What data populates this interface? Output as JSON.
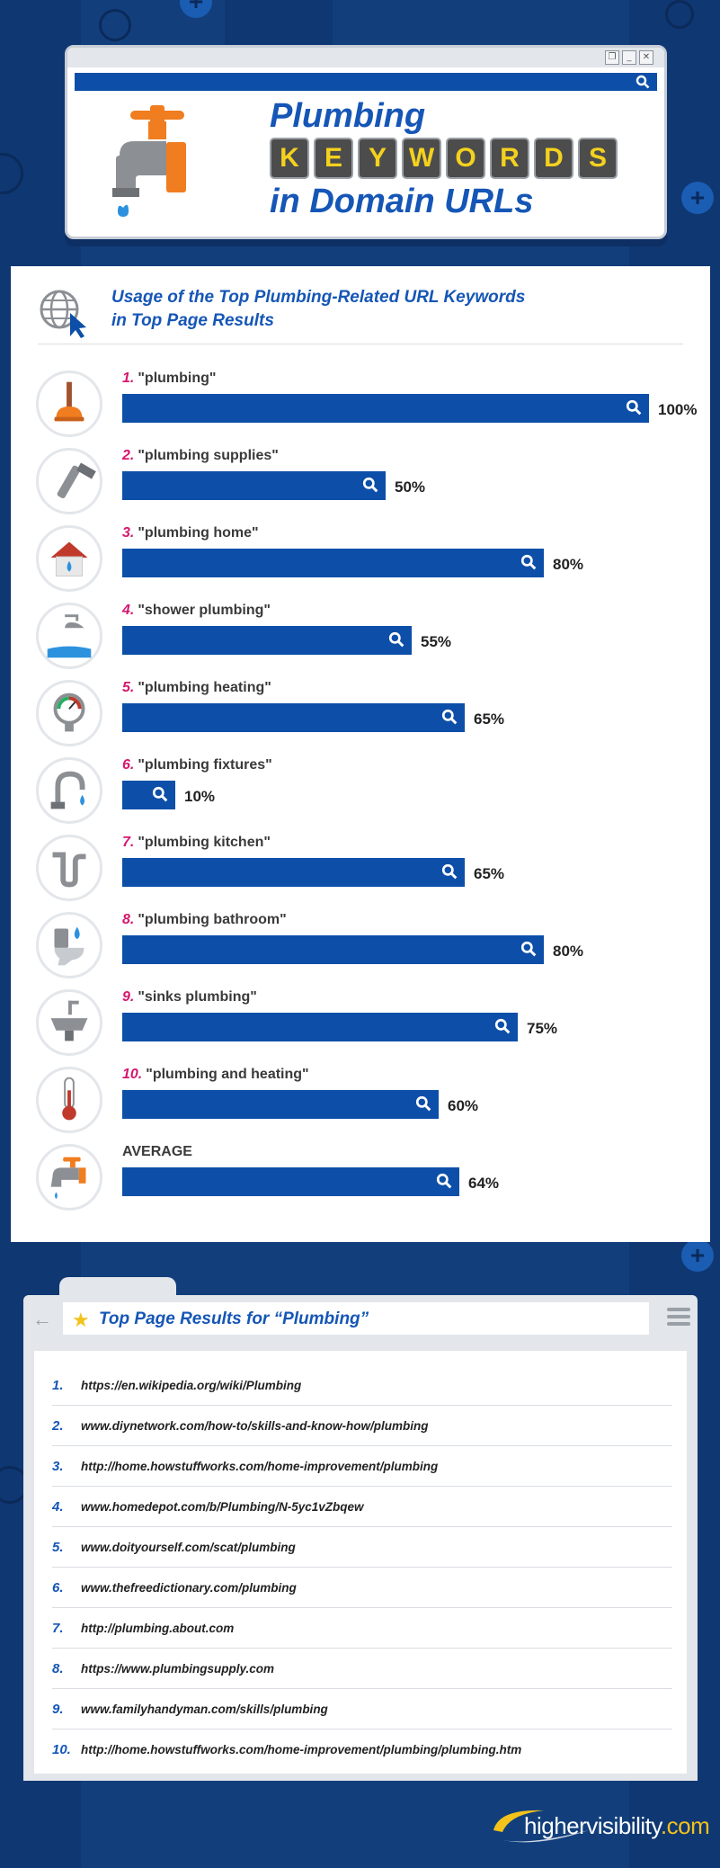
{
  "colors": {
    "background": "#123f7c",
    "bar": "#0d4fa8",
    "title": "#1556b6",
    "rank": "#d6176f",
    "tile_letter": "#f4d11e",
    "logo_accent": "#f3c21b"
  },
  "header": {
    "title_line1": "Plumbing",
    "keyword_letters": [
      "K",
      "E",
      "Y",
      "W",
      "O",
      "R",
      "D",
      "S"
    ],
    "title_line3": "in Domain URLs",
    "window_buttons": [
      "❐",
      "_",
      "✕"
    ],
    "icon": "faucet-icon"
  },
  "chart_data": {
    "type": "bar",
    "title": "Usage of the Top Plumbing-Related URL Keywords in Top Page Results",
    "title_line1": "Usage of the Top Plumbing-Related URL Keywords",
    "title_line2": "in Top Page Results",
    "categories": [
      "\"plumbing\"",
      "\"plumbing supplies\"",
      "\"plumbing home\"",
      "\"shower plumbing\"",
      "\"plumbing heating\"",
      "\"plumbing fixtures\"",
      "\"plumbing kitchen\"",
      "\"plumbing bathroom\"",
      "\"sinks plumbing\"",
      "\"plumbing and heating\"",
      "AVERAGE"
    ],
    "ranks": [
      "1.",
      "2.",
      "3.",
      "4.",
      "5.",
      "6.",
      "7.",
      "8.",
      "9.",
      "10.",
      ""
    ],
    "values": [
      100,
      50,
      80,
      55,
      65,
      10,
      65,
      80,
      75,
      60,
      64
    ],
    "value_labels": [
      "100%",
      "50%",
      "80%",
      "55%",
      "65%",
      "10%",
      "65%",
      "80%",
      "75%",
      "60%",
      "64%"
    ],
    "icons": [
      "plunger-icon",
      "wrench-icon",
      "house-icon",
      "shower-icon",
      "gauge-icon",
      "faucet-fixture-icon",
      "pipe-icon",
      "toilet-icon",
      "sink-icon",
      "thermometer-icon",
      "faucet-icon"
    ],
    "xlim": [
      0,
      100
    ],
    "unit": "%"
  },
  "results": {
    "title": "Top Page Results for “Plumbing”",
    "items": [
      {
        "num": "1.",
        "url": "https://en.wikipedia.org/wiki/Plumbing"
      },
      {
        "num": "2.",
        "url": "www.diynetwork.com/how-to/skills-and-know-how/plumbing"
      },
      {
        "num": "3.",
        "url": "http://home.howstuffworks.com/home-improvement/plumbing"
      },
      {
        "num": "4.",
        "url": "www.homedepot.com/b/Plumbing/N-5yc1vZbqew"
      },
      {
        "num": "5.",
        "url": "www.doityourself.com/scat/plumbing"
      },
      {
        "num": "6.",
        "url": "www.thefreedictionary.com/plumbing"
      },
      {
        "num": "7.",
        "url": "http://plumbing.about.com"
      },
      {
        "num": "8.",
        "url": "https://www.plumbingsupply.com"
      },
      {
        "num": "9.",
        "url": "www.familyhandyman.com/skills/plumbing"
      },
      {
        "num": "10.",
        "url": "http://home.howstuffworks.com/home-improvement/plumbing/plumbing.htm"
      }
    ]
  },
  "logo": {
    "main": "highervisibility",
    "accent": ".com"
  }
}
